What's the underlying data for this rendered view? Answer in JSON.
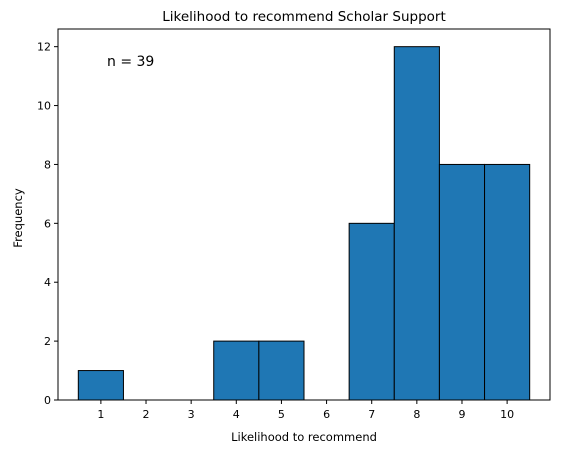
{
  "chart_data": {
    "type": "bar",
    "title": "Likelihood to recommend Scholar Support",
    "xlabel": "Likelihood to recommend",
    "ylabel": "Frequency",
    "annotation": "n = 39",
    "categories": [
      "1",
      "2",
      "3",
      "4",
      "5",
      "6",
      "7",
      "8",
      "9",
      "10"
    ],
    "values": [
      1,
      0,
      0,
      2,
      2,
      0,
      6,
      12,
      8,
      8
    ],
    "xlim": [
      0.05,
      10.95
    ],
    "ylim": [
      0,
      12.6
    ],
    "yticks": [
      0,
      2,
      4,
      6,
      8,
      10,
      12
    ],
    "grid": false,
    "legend": "none",
    "bar_color": "#1f77b4",
    "edge_color": "#000000"
  }
}
